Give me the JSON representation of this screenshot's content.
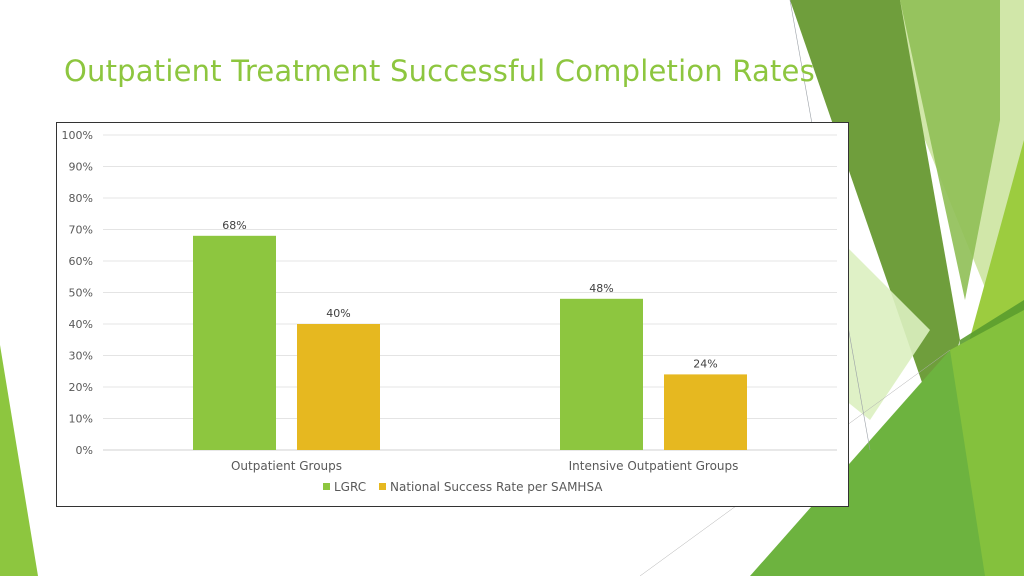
{
  "slide": {
    "title": "Outpatient Treatment Successful Completion Rates",
    "accent_color": "#8dc63f"
  },
  "chart_data": {
    "type": "bar",
    "categories": [
      "Outpatient Groups",
      "Intensive Outpatient Groups"
    ],
    "series": [
      {
        "name": "LGRC",
        "values": [
          68,
          48
        ],
        "color": "#8dc63f"
      },
      {
        "name": "National Success Rate per SAMHSA",
        "values": [
          40,
          24
        ],
        "color": "#e6b820"
      }
    ],
    "data_labels": [
      [
        "68%",
        "48%"
      ],
      [
        "40%",
        "24%"
      ]
    ],
    "y_ticks": [
      "0%",
      "10%",
      "20%",
      "30%",
      "40%",
      "50%",
      "60%",
      "70%",
      "80%",
      "90%",
      "100%"
    ],
    "ylim": [
      0,
      100
    ],
    "grid": true,
    "legend_position": "bottom-center"
  }
}
